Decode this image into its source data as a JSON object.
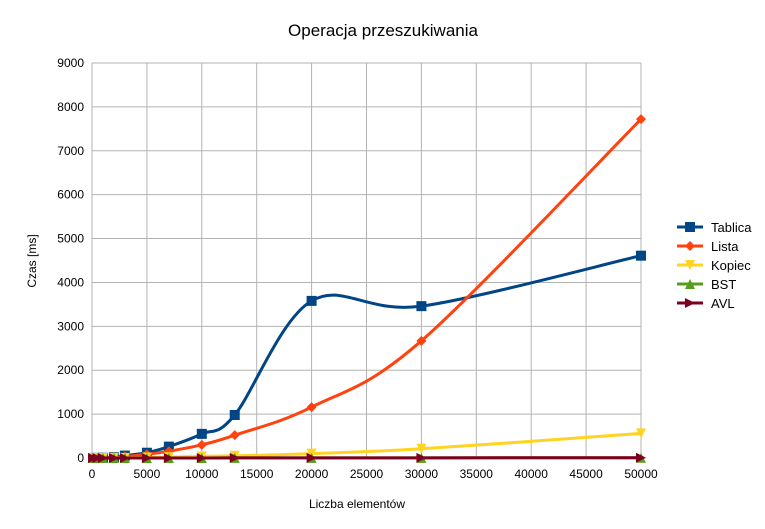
{
  "chart_data": {
    "type": "line",
    "title": "Operacja przeszukiwania",
    "xlabel": "Liczba elementów",
    "ylabel": "Czas [ms]",
    "xlim": [
      0,
      50000
    ],
    "ylim": [
      0,
      9000
    ],
    "xticks": [
      0,
      5000,
      10000,
      15000,
      20000,
      25000,
      30000,
      35000,
      40000,
      45000,
      50000
    ],
    "yticks": [
      0,
      1000,
      2000,
      3000,
      4000,
      5000,
      6000,
      7000,
      8000,
      9000
    ],
    "grid": true,
    "legend_position": "right",
    "smooth": true,
    "x": [
      100,
      500,
      1000,
      2000,
      3000,
      5000,
      7000,
      10000,
      13000,
      20000,
      30000,
      50000
    ],
    "series": [
      {
        "name": "Tablica",
        "color": "#004586",
        "marker": "square",
        "values": [
          1,
          3,
          6,
          18,
          55,
          120,
          260,
          550,
          980,
          3580,
          3460,
          4610
        ]
      },
      {
        "name": "Lista",
        "color": "#ff420e",
        "marker": "diamond",
        "values": [
          1,
          2,
          4,
          12,
          30,
          85,
          155,
          300,
          520,
          1160,
          2670,
          7720
        ]
      },
      {
        "name": "Kopiec",
        "color": "#ffd320",
        "marker": "triangle-down",
        "values": [
          0,
          0,
          1,
          2,
          4,
          10,
          20,
          35,
          50,
          100,
          210,
          560
        ]
      },
      {
        "name": "BST",
        "color": "#579d1c",
        "marker": "triangle-up",
        "values": [
          0,
          0,
          0,
          0,
          0,
          1,
          1,
          1,
          2,
          3,
          4,
          6
        ]
      },
      {
        "name": "AVL",
        "color": "#7e0021",
        "marker": "triangle-right",
        "values": [
          0,
          0,
          0,
          0,
          0,
          1,
          1,
          1,
          2,
          3,
          4,
          6
        ]
      }
    ]
  }
}
